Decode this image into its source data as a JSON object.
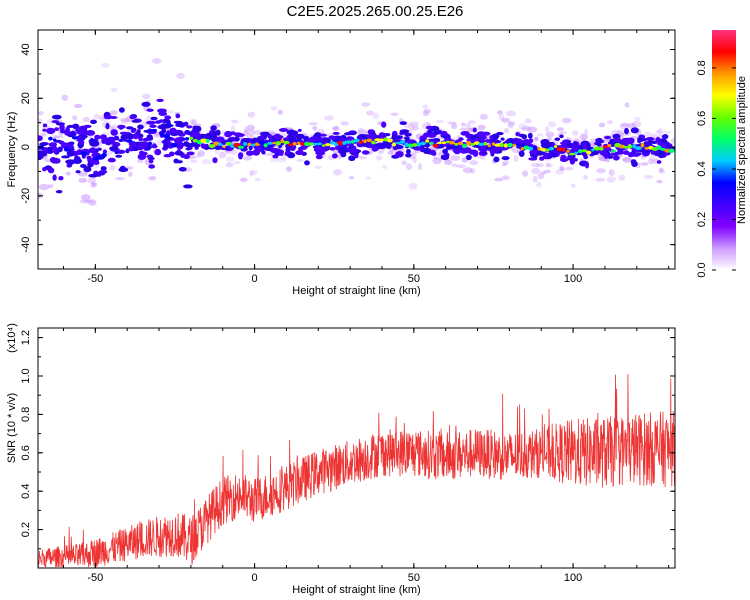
{
  "title": "C2E5.2025.265.00.25.E26",
  "chart_data": [
    {
      "type": "heatmap",
      "xlabel": "Height of straight line (km)",
      "ylabel": "Frequency (Hz)",
      "xlim": [
        -68,
        132
      ],
      "ylim": [
        -50,
        48
      ],
      "xticks": [
        -50,
        0,
        50,
        100
      ],
      "yticks": [
        40,
        20,
        0,
        -20,
        -40
      ],
      "colorbar": {
        "label": "Normalized spectral amplitude",
        "range": [
          0,
          0.95
        ],
        "ticks": [
          0.0,
          0.2,
          0.4,
          0.6,
          0.8
        ],
        "colormap": [
          "#ffffff",
          "#cc99ff",
          "#8000ff",
          "#4000ff",
          "#0000ff",
          "#00ccff",
          "#00ff66",
          "#66ff00",
          "#ffff00",
          "#ff9900",
          "#ff0000",
          "#ff3380"
        ]
      },
      "ridge": {
        "x": [
          -68,
          -60,
          -55,
          -50,
          -45,
          -40,
          -35,
          -32,
          -30,
          -28,
          -25,
          -22,
          -20,
          -15,
          -10,
          -5,
          0,
          10,
          20,
          30,
          40,
          50,
          60,
          70,
          80,
          85,
          90,
          95,
          100,
          105,
          110,
          120,
          132
        ],
        "freq": [
          0,
          2,
          0,
          -4,
          2,
          3,
          2,
          5,
          11,
          6,
          3,
          -2,
          3,
          2,
          1,
          1,
          1,
          2,
          1,
          2,
          3,
          1,
          2,
          1,
          1,
          0,
          -1,
          -1,
          -2,
          -2,
          0,
          0,
          -1
        ]
      }
    },
    {
      "type": "line",
      "xlabel": "Height of straight line (km)",
      "ylabel": "SNR (10 * v/v)",
      "yscale_label": "(x10⁴)",
      "xlim": [
        -68,
        132
      ],
      "ylim": [
        0,
        1.25
      ],
      "xticks": [
        -50,
        0,
        50,
        100
      ],
      "yticks": [
        0.2,
        0.4,
        0.6,
        0.8,
        1.0,
        1.2
      ],
      "color": "#ee3333",
      "trend": {
        "x": [
          -68,
          -55,
          -45,
          -35,
          -25,
          -20,
          -15,
          -10,
          -5,
          0,
          10,
          20,
          30,
          40,
          50,
          60,
          70,
          80,
          90,
          100,
          110,
          120,
          132
        ],
        "y": [
          0.05,
          0.06,
          0.1,
          0.15,
          0.18,
          0.14,
          0.25,
          0.35,
          0.38,
          0.35,
          0.42,
          0.5,
          0.55,
          0.6,
          0.6,
          0.58,
          0.6,
          0.58,
          0.6,
          0.6,
          0.6,
          0.62,
          0.62
        ]
      },
      "spread": {
        "x": [
          -68,
          -40,
          -20,
          0,
          30,
          60,
          90,
          100,
          132
        ],
        "y": [
          0.05,
          0.09,
          0.13,
          0.12,
          0.12,
          0.13,
          0.13,
          0.18,
          0.2
        ]
      }
    }
  ]
}
